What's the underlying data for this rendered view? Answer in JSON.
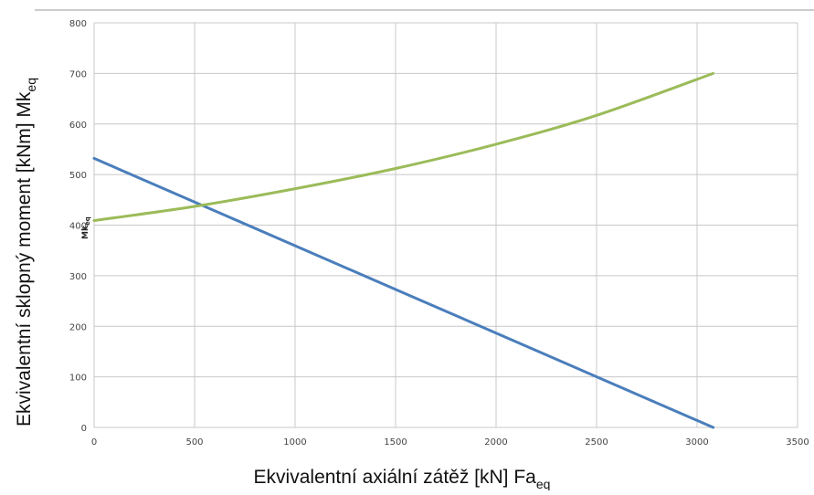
{
  "chart_data": {
    "type": "line",
    "xlabel": "Ekvivalentní axiální zátěž [kN] Fa",
    "xlabel_sub": "eq",
    "ylabel": "Ekvivalentní sklopný moment [kNm] Mk",
    "ylabel_sub": "eq",
    "stray_label": "Mk",
    "stray_label_sub": "eq",
    "xlim": [
      0,
      3500
    ],
    "ylim": [
      0,
      800
    ],
    "x_ticks": [
      "0",
      "500",
      "1000",
      "1500",
      "2000",
      "2500",
      "3000",
      "3500"
    ],
    "y_ticks": [
      "0",
      "100",
      "200",
      "300",
      "400",
      "500",
      "600",
      "700",
      "800"
    ],
    "grid": true,
    "legend": "none",
    "series": [
      {
        "color": "#4a7ebb",
        "x": [
          0,
          3080
        ],
        "y": [
          532,
          0
        ]
      },
      {
        "color": "#9bbb59",
        "x": [
          0,
          500,
          1000,
          1500,
          2000,
          2500,
          3080
        ],
        "y": [
          409,
          437,
          472,
          512,
          560,
          617,
          700
        ]
      }
    ]
  },
  "colors": {
    "grid": "#c8c8c8",
    "top_rule": "#9a9a9a"
  }
}
